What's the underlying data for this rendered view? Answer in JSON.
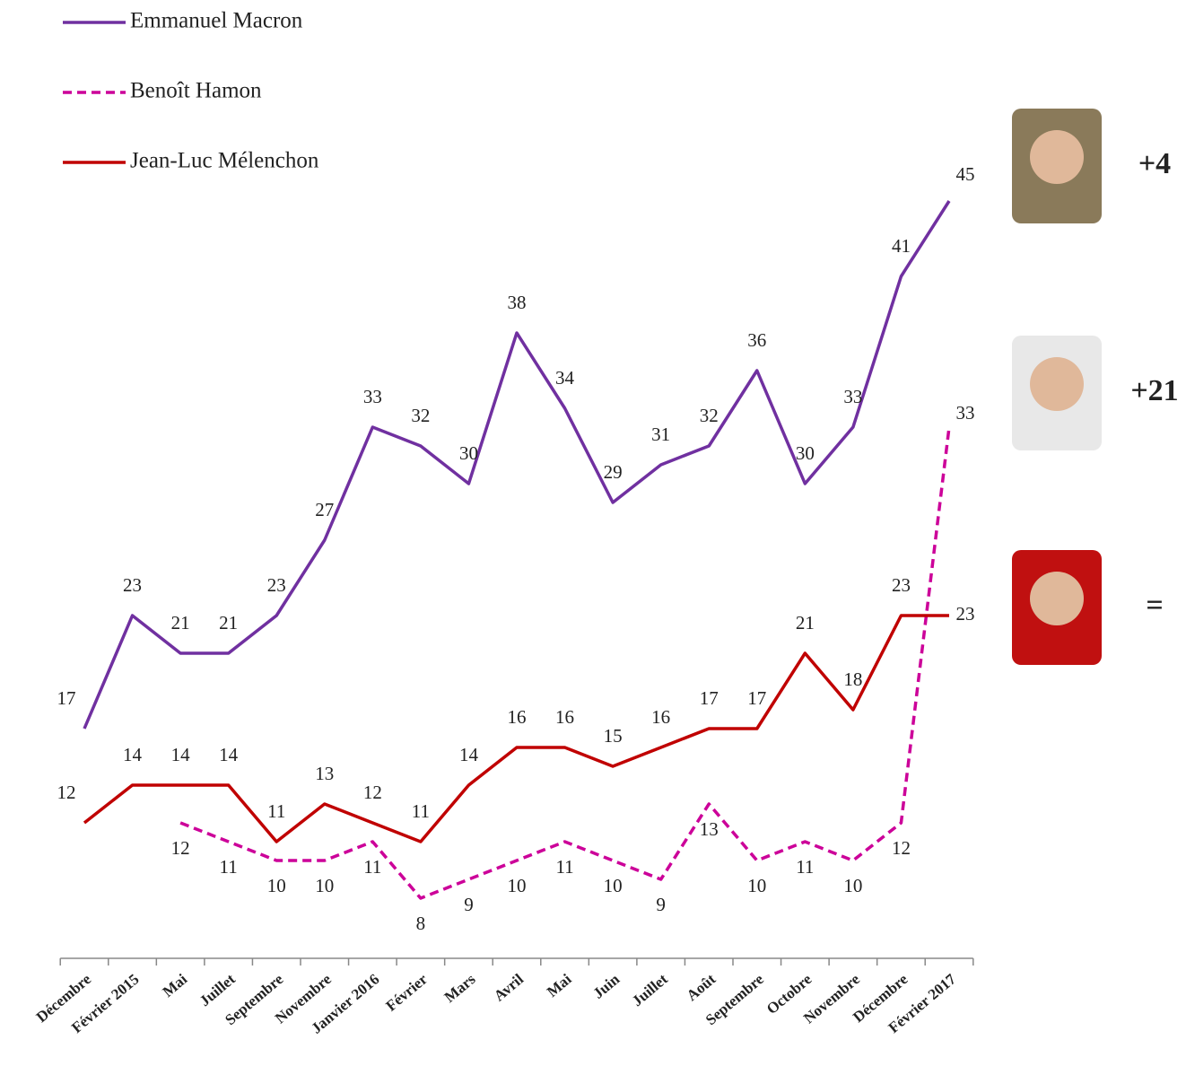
{
  "chart_data": {
    "type": "line",
    "categories": [
      "Décembre",
      "Février 2015",
      "Mai",
      "Juillet",
      "Septembre",
      "Novembre",
      "Janvier 2016",
      "Février",
      "Mars",
      "Avril",
      "Mai",
      "Juin",
      "Juillet",
      "Août",
      "Septembre",
      "Octobre",
      "Novembre",
      "Décembre",
      "Février 2017"
    ],
    "series": [
      {
        "name": "Emmanuel Macron",
        "color": "#7030a0",
        "dashed": false,
        "values": [
          17,
          23,
          21,
          21,
          23,
          27,
          33,
          32,
          30,
          38,
          34,
          29,
          31,
          32,
          36,
          30,
          33,
          41,
          45
        ]
      },
      {
        "name": "Benoît Hamon",
        "color": "#cc0099",
        "dashed": true,
        "values": [
          null,
          null,
          12,
          11,
          10,
          10,
          11,
          8,
          9,
          10,
          11,
          10,
          9,
          13,
          10,
          11,
          10,
          12,
          33
        ]
      },
      {
        "name": "Jean-Luc Mélenchon",
        "color": "#c00000",
        "dashed": false,
        "values": [
          12,
          14,
          14,
          14,
          11,
          13,
          12,
          11,
          14,
          16,
          16,
          15,
          16,
          17,
          17,
          21,
          18,
          23,
          23
        ]
      }
    ],
    "annotations": [
      {
        "text": "+4",
        "color": "#1e8c3c"
      },
      {
        "text": "+21",
        "color": "#1e8c3c"
      },
      {
        "text": "=",
        "color": "#333333"
      }
    ],
    "ylim": [
      5,
      50
    ],
    "grid": false
  }
}
